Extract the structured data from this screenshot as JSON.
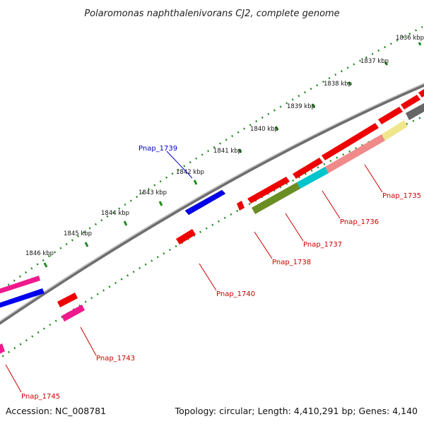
{
  "map": {
    "title": "Polaromonas naphthalenivorans CJ2, complete genome",
    "accession": "Accession: NC_008781",
    "summary": "Topology: circular; Length: 4,410,291 bp; Genes: 4,140",
    "ticks": [
      "1836 kbp",
      "1837 kbp",
      "1838 kbp",
      "1839 kbp",
      "1840 kbp",
      "1841 kbp",
      "1842 kbp",
      "1843 kbp",
      "1844 kbp",
      "1845 kbp",
      "1846 kbp"
    ],
    "gene_labels": [
      "Pnap_1735",
      "Pnap_1736",
      "Pnap_1737",
      "Pnap_1738",
      "Pnap_1739",
      "Pnap_1740",
      "Pnap_1743",
      "Pnap_1745"
    ],
    "colors": {
      "backbone": "#888888",
      "tick_marks": "#1e8a1e",
      "forward_label": "#0000cc",
      "reverse_label": "#cc0000",
      "red_gene": "#ee0000",
      "blue_gene": "#0000ee",
      "pink_gene": "#ee1a8c",
      "olive_gene": "#6b8e23",
      "cyan_gene": "#00c4cc",
      "salmon_gene": "#f08a8a",
      "khaki_gene": "#f0e68c",
      "gray_gene": "#666666"
    }
  }
}
